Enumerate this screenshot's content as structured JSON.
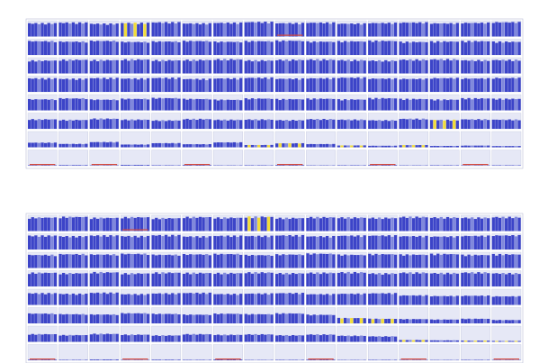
{
  "colors": {
    "bar": "#3c44c8",
    "bar_light": "#8088dc",
    "cell_fill": "#e6e8f6",
    "grid": "#b8bcd6",
    "highlight": "#f1dc3a",
    "alert": "#d84a3a",
    "label": "#8a8aa0"
  },
  "panels": [
    {
      "title": "",
      "row_labels": [
        "",
        "",
        "",
        "",
        "",
        "",
        "",
        ""
      ],
      "right_labels": [
        "",
        "",
        "",
        "",
        "",
        "",
        "",
        ""
      ],
      "chart_data": {
        "type": "bar",
        "rows": 8,
        "columns": 16,
        "fill": [
          [
            0.86,
            0.9,
            0.83,
            0.88,
            0.92,
            0.85,
            0.89,
            0.94,
            0.87,
            0.9,
            0.84,
            0.88,
            0.91,
            0.86,
            0.89,
            0.93
          ],
          [
            0.9,
            0.87,
            0.92,
            0.85,
            0.88,
            0.91,
            0.86,
            0.9,
            0.93,
            0.87,
            0.89,
            0.92,
            0.85,
            0.88,
            0.9,
            0.86
          ],
          [
            0.84,
            0.89,
            0.87,
            0.91,
            0.86,
            0.88,
            0.92,
            0.85,
            0.89,
            0.91,
            0.87,
            0.84,
            0.9,
            0.92,
            0.86,
            0.88
          ],
          [
            0.88,
            0.85,
            0.9,
            0.87,
            0.91,
            0.84,
            0.88,
            0.92,
            0.86,
            0.89,
            0.93,
            0.87,
            0.85,
            0.9,
            0.88,
            0.91
          ],
          [
            0.72,
            0.78,
            0.7,
            0.75,
            0.8,
            0.74,
            0.69,
            0.77,
            0.73,
            0.76,
            0.71,
            0.79,
            0.74,
            0.7,
            0.78,
            0.75
          ],
          [
            0.62,
            0.58,
            0.66,
            0.6,
            0.55,
            0.64,
            0.59,
            0.61,
            0.57,
            0.63,
            0.6,
            0.56,
            0.65,
            0.58,
            0.62,
            0.6
          ],
          [
            0.3,
            0.22,
            0.34,
            0.18,
            0.27,
            0.2,
            0.32,
            0.15,
            0.26,
            0.21,
            0.12,
            0.1,
            0.14,
            0.09,
            0.11,
            0.08
          ],
          [
            0.03,
            0.04,
            0.02,
            0.05,
            0.03,
            0.04,
            0.02,
            0.03,
            0.04,
            0.02,
            0.03,
            0.04,
            0.02,
            0.03,
            0.02,
            0.03
          ]
        ],
        "highlights": [
          [
            0,
            3
          ],
          [
            6,
            7
          ],
          [
            6,
            8
          ],
          [
            6,
            10
          ],
          [
            6,
            12
          ],
          [
            5,
            13
          ]
        ],
        "alerts": [
          [
            7,
            0
          ],
          [
            7,
            2
          ],
          [
            7,
            5
          ],
          [
            7,
            8
          ],
          [
            7,
            11
          ],
          [
            7,
            14
          ],
          [
            0,
            8
          ]
        ]
      }
    },
    {
      "title": "",
      "row_labels": [
        "",
        "",
        "",
        "",
        "",
        "",
        "",
        ""
      ],
      "right_labels": [
        "",
        "",
        "",
        "",
        "",
        "",
        "",
        ""
      ],
      "chart_data": {
        "type": "bar",
        "rows": 8,
        "columns": 16,
        "fill": [
          [
            0.88,
            0.92,
            0.86,
            0.9,
            0.84,
            0.91,
            0.87,
            0.93,
            0.85,
            0.9,
            0.88,
            0.86,
            0.92,
            0.89,
            0.87,
            0.91
          ],
          [
            0.9,
            0.86,
            0.91,
            0.87,
            0.93,
            0.85,
            0.89,
            0.88,
            0.92,
            0.86,
            0.9,
            0.91,
            0.87,
            0.85,
            0.89,
            0.92
          ],
          [
            0.85,
            0.9,
            0.88,
            0.92,
            0.86,
            0.89,
            0.91,
            0.84,
            0.88,
            0.93,
            0.86,
            0.9,
            0.87,
            0.91,
            0.85,
            0.89
          ],
          [
            0.89,
            0.86,
            0.92,
            0.85,
            0.9,
            0.88,
            0.87,
            0.91,
            0.86,
            0.89,
            0.92,
            0.85,
            0.9,
            0.87,
            0.91,
            0.86
          ],
          [
            0.76,
            0.72,
            0.79,
            0.7,
            0.75,
            0.78,
            0.71,
            0.74,
            0.77,
            0.7,
            0.73,
            0.76,
            0.62,
            0.58,
            0.6,
            0.56
          ],
          [
            0.64,
            0.6,
            0.58,
            0.66,
            0.62,
            0.57,
            0.63,
            0.6,
            0.65,
            0.56,
            0.35,
            0.3,
            0.28,
            0.25,
            0.3,
            0.22
          ],
          [
            0.5,
            0.44,
            0.52,
            0.47,
            0.42,
            0.5,
            0.46,
            0.49,
            0.43,
            0.48,
            0.4,
            0.36,
            0.12,
            0.1,
            0.08,
            0.06
          ],
          [
            0.04,
            0.03,
            0.05,
            0.02,
            0.04,
            0.03,
            0.05,
            0.02,
            0.03,
            0.04,
            0.02,
            0.03,
            0.02,
            0.02,
            0.03,
            0.02
          ]
        ],
        "highlights": [
          [
            0,
            7
          ],
          [
            5,
            10
          ],
          [
            5,
            11
          ],
          [
            6,
            12
          ],
          [
            6,
            14
          ],
          [
            6,
            15
          ]
        ],
        "alerts": [
          [
            7,
            0
          ],
          [
            7,
            3
          ],
          [
            7,
            6
          ],
          [
            7,
            9
          ],
          [
            7,
            12
          ],
          [
            7,
            15
          ],
          [
            0,
            3
          ]
        ]
      }
    }
  ]
}
